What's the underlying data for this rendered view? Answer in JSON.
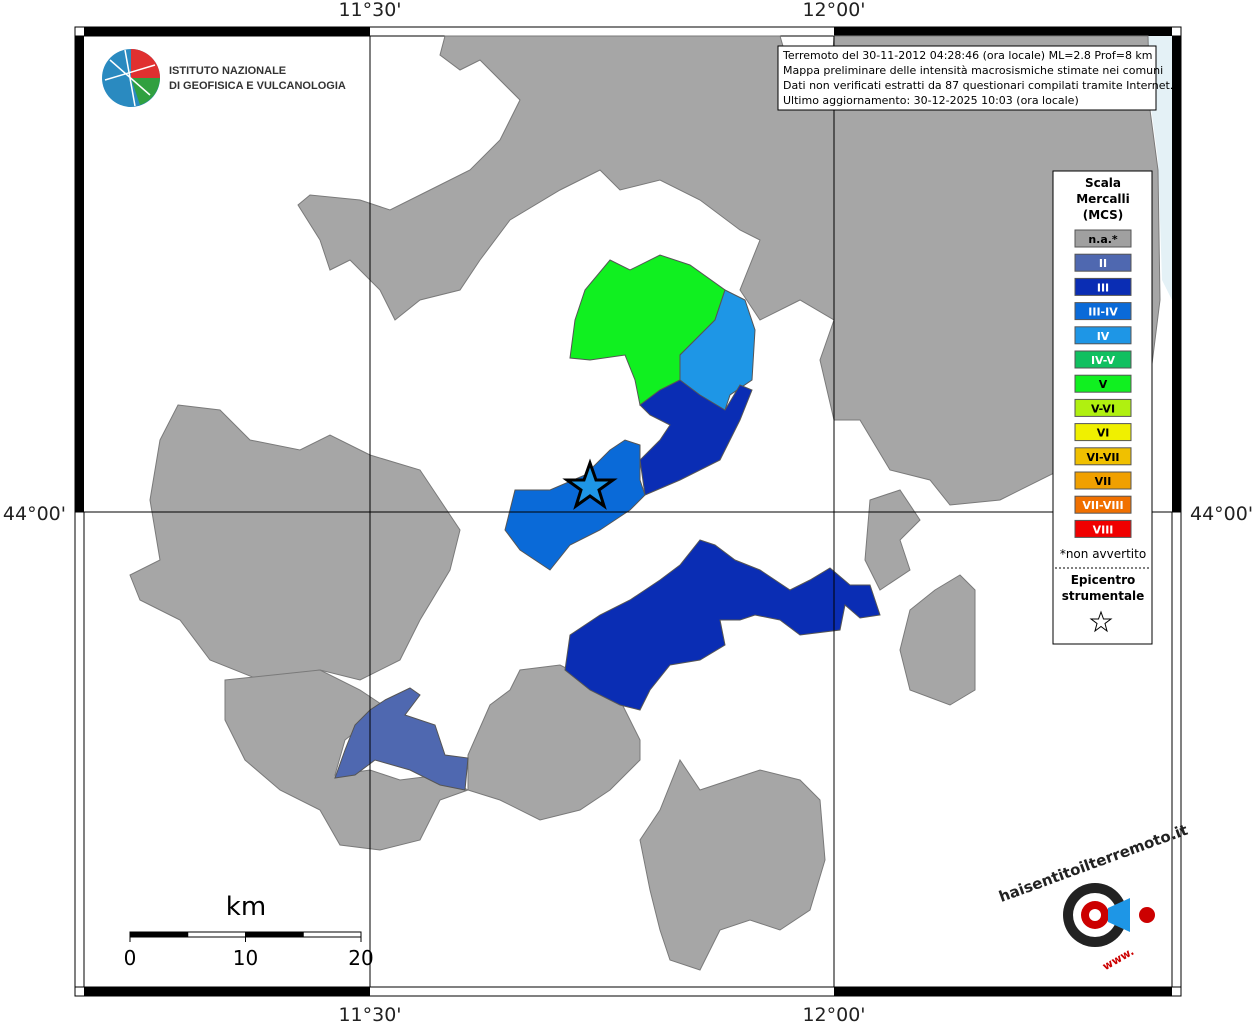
{
  "graticule": {
    "lon_west": "11°30'",
    "lon_east": "12°00'",
    "lat": "44°00'"
  },
  "logo": {
    "line1": "ISTITUTO NAZIONALE",
    "line2": "DI GEOFISICA E VULCANOLOGIA"
  },
  "info": [
    "Terremoto del 30-11-2012 04:28:46 (ora locale) ML=2.8 Prof=8 km",
    "Mappa preliminare delle intensità macrosismiche stimate nei comuni",
    "Dati non verificati estratti da 87 questionari compilati tramite Internet.",
    "Ultimo aggiornamento: 30-12-2025 10:03 (ora locale)"
  ],
  "legend": {
    "title": [
      "Scala",
      "Mercalli",
      "(MCS)"
    ],
    "items": [
      {
        "label": "n.a.*",
        "color": "#a0a0a0"
      },
      {
        "label": "II",
        "color": "#4f68b0"
      },
      {
        "label": "III",
        "color": "#0a2db4"
      },
      {
        "label": "III-IV",
        "color": "#0a6ad8"
      },
      {
        "label": "IV",
        "color": "#1e96e6"
      },
      {
        "label": "IV-V",
        "color": "#10c060"
      },
      {
        "label": "V",
        "color": "#10f020"
      },
      {
        "label": "V-VI",
        "color": "#b0f010"
      },
      {
        "label": "VI",
        "color": "#f0f000"
      },
      {
        "label": "VI-VII",
        "color": "#f0c000"
      },
      {
        "label": "VII",
        "color": "#f0a000"
      },
      {
        "label": "VII-VIII",
        "color": "#f07000"
      },
      {
        "label": "VIII",
        "color": "#f00000"
      }
    ],
    "note": "*non avvertito",
    "epicenter": [
      "Epicentro",
      "strumentale"
    ]
  },
  "scale_bar": {
    "unit": "km",
    "ticks": [
      0,
      10,
      20
    ]
  },
  "hsit_logo": {
    "site": "haisentitoilterremoto.it",
    "www": "www."
  }
}
